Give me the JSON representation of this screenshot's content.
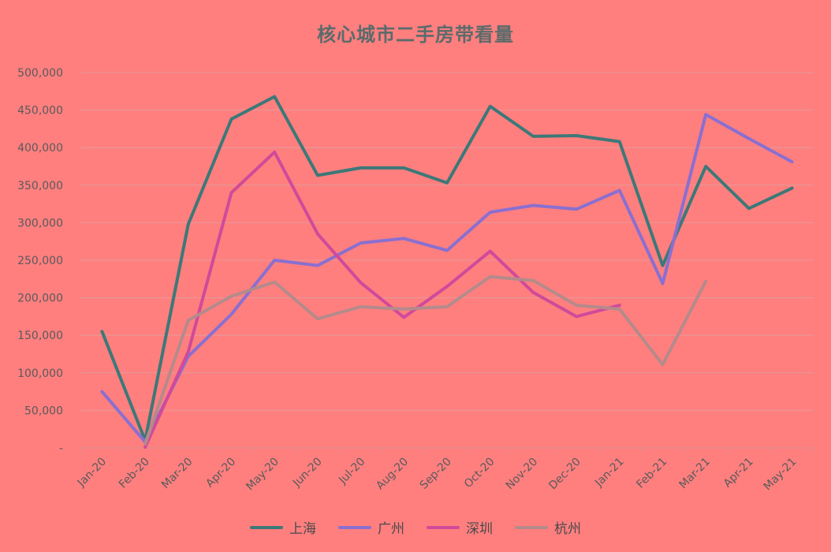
{
  "chart_data": {
    "type": "line",
    "title": "核心城市二手房带看量",
    "xlabel": "",
    "ylabel": "",
    "categories": [
      "Jan-20",
      "Feb-20",
      "Mar-20",
      "Apr-20",
      "May-20",
      "Jun-20",
      "Jul-20",
      "Aug-20",
      "Sep-20",
      "Oct-20",
      "Nov-20",
      "Dec-20",
      "Jan-21",
      "Feb-21",
      "Mar-21",
      "Apr-21",
      "May-21"
    ],
    "ylim": [
      0,
      500000
    ],
    "yticks": [
      0,
      50000,
      100000,
      150000,
      200000,
      250000,
      300000,
      350000,
      400000,
      450000,
      500000
    ],
    "ytick_labels": [
      "-",
      "50,000",
      "100,000",
      "150,000",
      "200,000",
      "250,000",
      "300,000",
      "350,000",
      "400,000",
      "450,000",
      "500,000"
    ],
    "grid": true,
    "legend_position": "bottom",
    "series": [
      {
        "name": "上海",
        "color": "#3d7878",
        "values": [
          155000,
          10000,
          298000,
          438000,
          468000,
          363000,
          373000,
          373000,
          353000,
          455000,
          415000,
          416000,
          408000,
          243000,
          375000,
          319000,
          346000
        ]
      },
      {
        "name": "广州",
        "color": "#8a6fd0",
        "values": [
          75000,
          8000,
          122000,
          178000,
          250000,
          243000,
          273000,
          279000,
          263000,
          314000,
          323000,
          318000,
          343000,
          219000,
          444000,
          412000,
          381000
        ]
      },
      {
        "name": "深圳",
        "color": "#d04a9a",
        "values": [
          null,
          1000,
          128000,
          340000,
          394000,
          285000,
          220000,
          174000,
          215000,
          262000,
          207000,
          175000,
          190000,
          null,
          null,
          null,
          null
        ]
      },
      {
        "name": "杭州",
        "color": "#b58a8a",
        "values": [
          null,
          5000,
          170000,
          202000,
          221000,
          172000,
          188000,
          185000,
          188000,
          228000,
          223000,
          190000,
          185000,
          111000,
          222000,
          null,
          null
        ]
      }
    ]
  }
}
